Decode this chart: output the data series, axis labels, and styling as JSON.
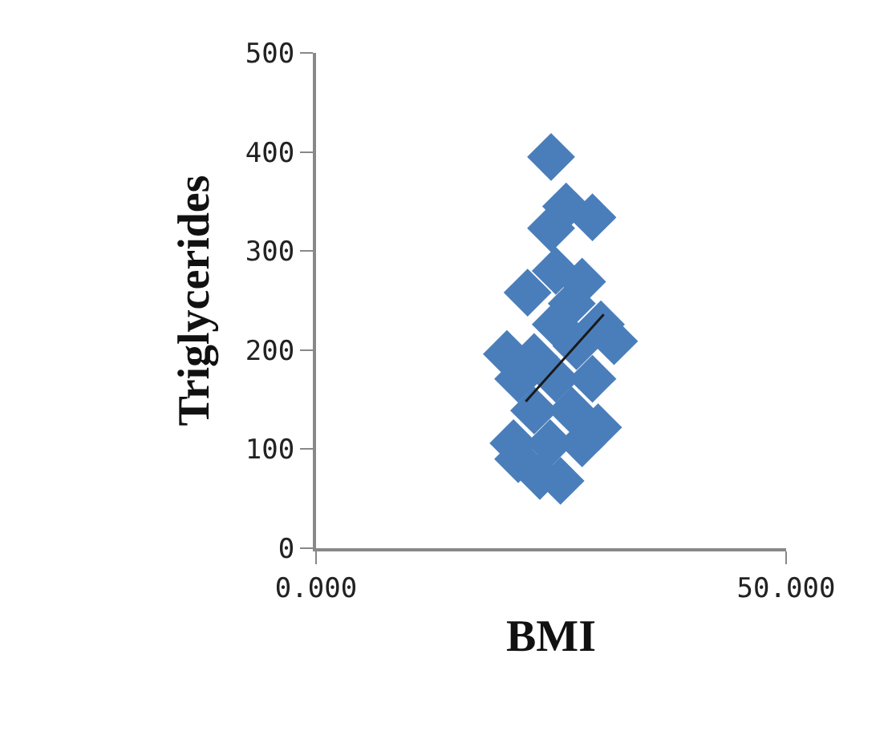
{
  "chart_data": {
    "type": "scatter",
    "xlabel": "BMI",
    "ylabel": "Triglycerides",
    "xlim": [
      0,
      50
    ],
    "xticks": [
      {
        "value": 0,
        "label": "0.000"
      },
      {
        "value": 50,
        "label": "50.000"
      }
    ],
    "ylim": [
      0,
      500
    ],
    "yticks": [
      0,
      100,
      200,
      300,
      400,
      500
    ],
    "marker": "diamond",
    "series": [
      {
        "color": "#4a7ebb",
        "x": [
          25.0,
          26.6,
          29.4,
          25.0,
          25.5,
          28.3,
          22.5,
          27.2,
          30.3,
          25.5,
          31.7,
          20.3,
          23.2,
          27.7,
          21.5,
          25.5,
          29.4,
          23.2,
          27.2,
          30.0,
          21.0,
          24.9,
          28.3,
          21.5,
          23.8,
          26.0
        ],
        "values": [
          395,
          345,
          334,
          323,
          280,
          269,
          258,
          247,
          226,
          226,
          209,
          196,
          193,
          204,
          171,
          171,
          171,
          139,
          139,
          122,
          106,
          106,
          106,
          90,
          73,
          68
        ]
      },
      {
        "type": "line",
        "marker": "none",
        "color": "#1a1a1a",
        "x": [
          22.3,
          30.6
        ],
        "values": [
          148,
          236
        ]
      }
    ]
  }
}
